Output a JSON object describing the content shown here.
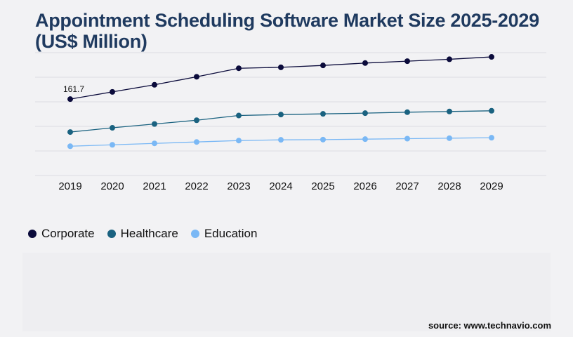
{
  "title": {
    "line1": "Appointment Scheduling Software Market Size 2025-2029",
    "line2": "(US$ Million)"
  },
  "chart_data": {
    "type": "line",
    "title": "Appointment Scheduling Software Market Size 2025-2029 (US$ Million)",
    "xlabel": "",
    "ylabel": "",
    "x": [
      "2019",
      "2020",
      "2021",
      "2022",
      "2023",
      "2024",
      "2025",
      "2026",
      "2027",
      "2028",
      "2029"
    ],
    "ylim": [
      0,
      260
    ],
    "grid": true,
    "legend_position": "bottom-left",
    "series": [
      {
        "name": "Corporate",
        "color": "#0b0b3b",
        "values": [
          161.7,
          177,
          192,
          209,
          227,
          229,
          233,
          238,
          242,
          246,
          251
        ]
      },
      {
        "name": "Healthcare",
        "color": "#1a6280",
        "values": [
          92,
          101,
          109,
          117,
          127,
          129,
          130.5,
          132,
          134,
          135.5,
          137
        ]
      },
      {
        "name": "Education",
        "color": "#7ab8f5",
        "values": [
          62,
          65,
          68,
          71,
          74,
          75.5,
          76,
          77,
          78,
          79,
          80
        ]
      }
    ],
    "annotations": [
      {
        "series": "Corporate",
        "x": "2019",
        "text": "161.7"
      }
    ]
  },
  "source": "source: www.technavio.com"
}
